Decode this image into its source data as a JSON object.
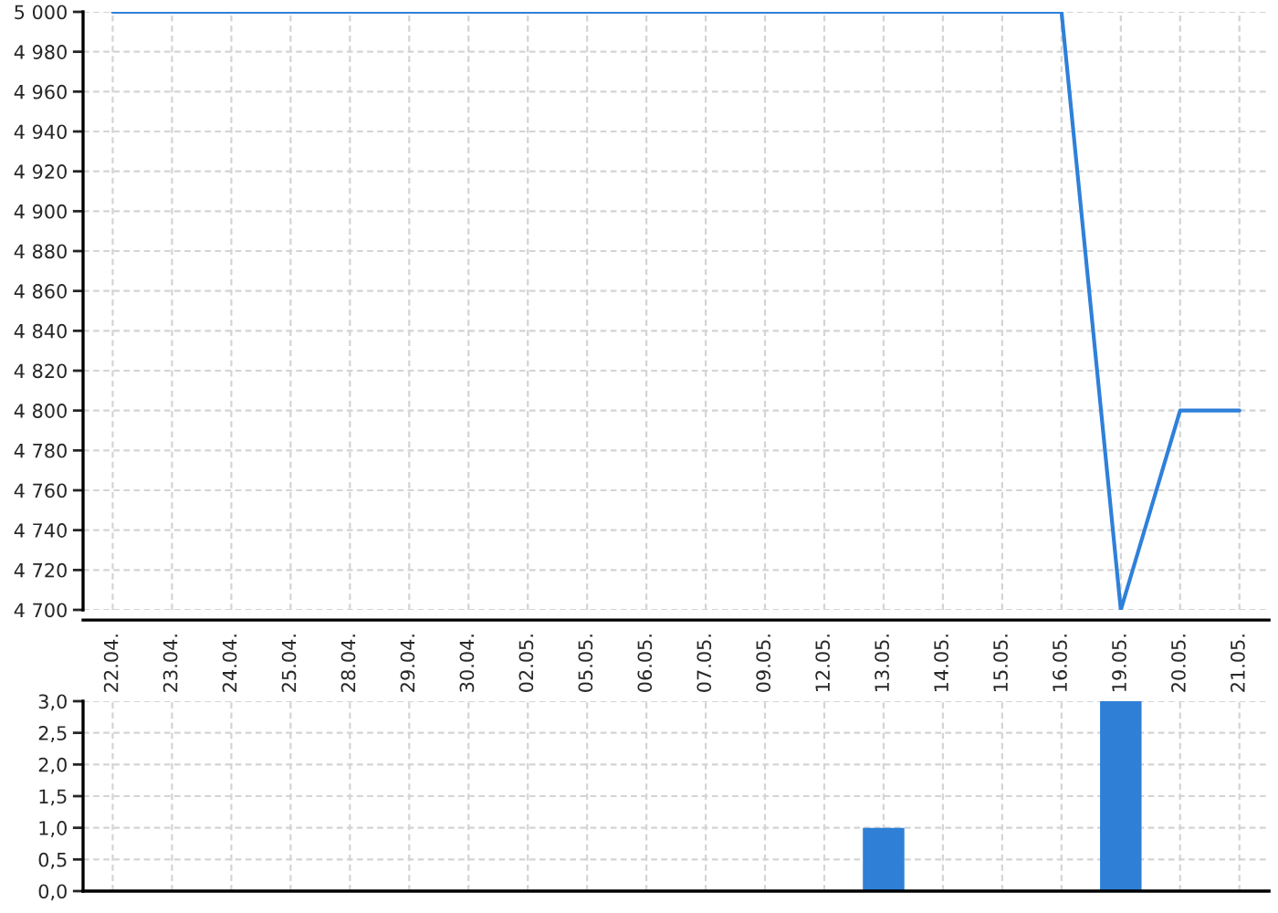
{
  "chart_data": [
    {
      "type": "line",
      "categories": [
        "22.04.",
        "23.04.",
        "24.04.",
        "25.04.",
        "28.04.",
        "29.04.",
        "30.04.",
        "02.05.",
        "05.05.",
        "06.05.",
        "07.05.",
        "09.05.",
        "12.05.",
        "13.05.",
        "14.05.",
        "15.05.",
        "16.05.",
        "19.05.",
        "20.05.",
        "21.05."
      ],
      "series": [
        {
          "color": "#2f80d9",
          "values": [
            5000,
            5000,
            5000,
            5000,
            5000,
            5000,
            5000,
            5000,
            5000,
            5000,
            5000,
            5000,
            5000,
            5000,
            5000,
            5000,
            5000,
            4700,
            4800,
            4800
          ]
        }
      ],
      "ylim": [
        4700,
        5000
      ],
      "yticks": [
        {
          "value": 4700,
          "label": "4 700"
        },
        {
          "value": 4720,
          "label": "4 720"
        },
        {
          "value": 4740,
          "label": "4 740"
        },
        {
          "value": 4760,
          "label": "4 760"
        },
        {
          "value": 4780,
          "label": "4 780"
        },
        {
          "value": 4800,
          "label": "4 800"
        },
        {
          "value": 4820,
          "label": "4 820"
        },
        {
          "value": 4840,
          "label": "4 840"
        },
        {
          "value": 4860,
          "label": "4 860"
        },
        {
          "value": 4880,
          "label": "4 880"
        },
        {
          "value": 4900,
          "label": "4 900"
        },
        {
          "value": 4920,
          "label": "4 920"
        },
        {
          "value": 4940,
          "label": "4 940"
        },
        {
          "value": 4960,
          "label": "4 960"
        },
        {
          "value": 4980,
          "label": "4 980"
        },
        {
          "value": 5000,
          "label": "5 000"
        }
      ],
      "grid": true
    },
    {
      "type": "bar",
      "categories": [
        "22.04.",
        "23.04.",
        "24.04.",
        "25.04.",
        "28.04.",
        "29.04.",
        "30.04.",
        "02.05.",
        "05.05.",
        "06.05.",
        "07.05.",
        "09.05.",
        "12.05.",
        "13.05.",
        "14.05.",
        "15.05.",
        "16.05.",
        "19.05.",
        "20.05.",
        "21.05."
      ],
      "series": [
        {
          "color": "#2f7fd6",
          "values": [
            0,
            0,
            0,
            0,
            0,
            0,
            0,
            0,
            0,
            0,
            0,
            0,
            0,
            1,
            0,
            0,
            0,
            3,
            0,
            0
          ]
        }
      ],
      "ylim": [
        0,
        3
      ],
      "yticks": [
        {
          "value": 0,
          "label": "0,0"
        },
        {
          "value": 0.5,
          "label": "0,5"
        },
        {
          "value": 1,
          "label": "1,0"
        },
        {
          "value": 1.5,
          "label": "1,5"
        },
        {
          "value": 2,
          "label": "2,0"
        },
        {
          "value": 2.5,
          "label": "2,5"
        },
        {
          "value": 3,
          "label": "3,0"
        }
      ],
      "grid": true,
      "tick_labels": "y"
    }
  ]
}
